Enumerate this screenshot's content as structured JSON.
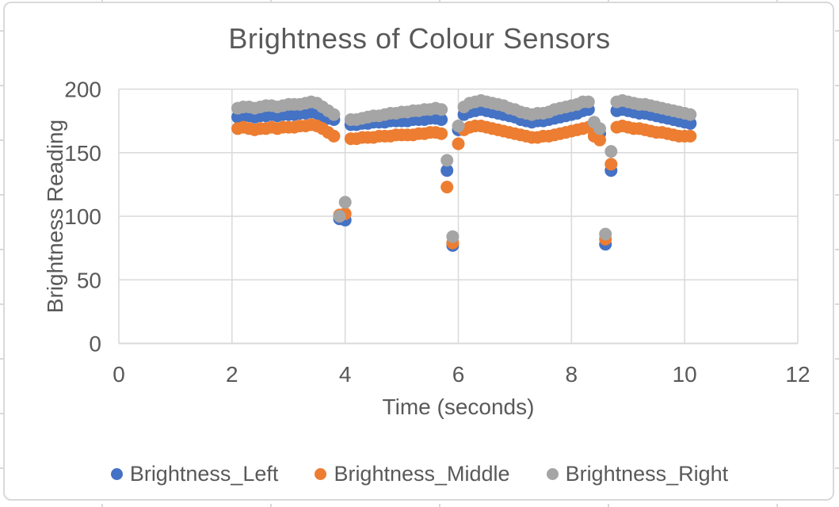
{
  "chart_data": {
    "type": "scatter",
    "title": "Brightness of Colour Sensors",
    "xlabel": "Time (seconds)",
    "ylabel": "Brightness Reading",
    "xlim": [
      0,
      12
    ],
    "ylim": [
      0,
      200
    ],
    "xticks": [
      0,
      2,
      4,
      6,
      8,
      10,
      12
    ],
    "yticks": [
      0,
      50,
      100,
      150,
      200
    ],
    "grid": true,
    "legend_position": "bottom",
    "marker": "circle",
    "colors": {
      "gridline": "#D9D9D9",
      "axis_text": "#595959",
      "series_blue": "#4472C4",
      "series_orange": "#ED7D31",
      "series_gray": "#A5A5A5"
    },
    "x": [
      2.1,
      2.2,
      2.3,
      2.4,
      2.5,
      2.6,
      2.7,
      2.8,
      2.9,
      3.0,
      3.1,
      3.2,
      3.3,
      3.4,
      3.5,
      3.6,
      3.7,
      3.8,
      3.9,
      4.0,
      4.1,
      4.2,
      4.3,
      4.4,
      4.5,
      4.6,
      4.7,
      4.8,
      4.9,
      5.0,
      5.1,
      5.2,
      5.3,
      5.4,
      5.5,
      5.6,
      5.7,
      5.8,
      5.9,
      6.0,
      6.1,
      6.2,
      6.3,
      6.4,
      6.5,
      6.6,
      6.7,
      6.8,
      6.9,
      7.0,
      7.1,
      7.2,
      7.3,
      7.4,
      7.5,
      7.6,
      7.7,
      7.8,
      7.9,
      8.0,
      8.1,
      8.2,
      8.3,
      8.4,
      8.5,
      8.6,
      8.7,
      8.8,
      8.9,
      9.0,
      9.1,
      9.2,
      9.3,
      9.4,
      9.5,
      9.6,
      9.7,
      9.8,
      9.9,
      10.0,
      10.1
    ],
    "series": [
      {
        "name": "Brightness_Left",
        "color": "#4472C4",
        "values": [
          178,
          179,
          179,
          178,
          179,
          179,
          180,
          179,
          180,
          180,
          180,
          181,
          181,
          182,
          181,
          179,
          177,
          176,
          98,
          97,
          172,
          172,
          173,
          173,
          174,
          174,
          174,
          175,
          175,
          175,
          175,
          176,
          176,
          176,
          177,
          177,
          176,
          136,
          77,
          168,
          180,
          182,
          183,
          184,
          183,
          182,
          181,
          180,
          179,
          178,
          176,
          175,
          174,
          175,
          175,
          176,
          177,
          178,
          179,
          180,
          181,
          183,
          184,
          172,
          165,
          78,
          136,
          183,
          184,
          183,
          182,
          181,
          181,
          180,
          179,
          178,
          177,
          176,
          175,
          174,
          173
        ]
      },
      {
        "name": "Brightness_Middle",
        "color": "#ED7D31",
        "values": [
          169,
          170,
          169,
          168,
          169,
          169,
          170,
          169,
          170,
          170,
          170,
          171,
          171,
          172,
          171,
          169,
          166,
          163,
          101,
          102,
          161,
          161,
          162,
          162,
          162,
          163,
          163,
          163,
          164,
          164,
          164,
          164,
          165,
          165,
          166,
          166,
          165,
          123,
          79,
          157,
          168,
          170,
          171,
          171,
          170,
          169,
          168,
          167,
          166,
          165,
          164,
          163,
          162,
          162,
          163,
          163,
          164,
          165,
          166,
          167,
          168,
          169,
          170,
          163,
          160,
          82,
          141,
          170,
          171,
          170,
          169,
          169,
          168,
          167,
          166,
          166,
          165,
          164,
          163,
          163,
          163
        ]
      },
      {
        "name": "Brightness_Right",
        "color": "#A5A5A5",
        "values": [
          185,
          186,
          186,
          185,
          186,
          187,
          187,
          186,
          187,
          188,
          188,
          188,
          189,
          190,
          189,
          186,
          183,
          180,
          100,
          111,
          176,
          176,
          177,
          178,
          179,
          179,
          180,
          181,
          181,
          182,
          182,
          183,
          183,
          184,
          184,
          185,
          184,
          144,
          84,
          171,
          186,
          189,
          190,
          191,
          190,
          189,
          188,
          187,
          185,
          184,
          182,
          181,
          180,
          181,
          181,
          182,
          184,
          185,
          186,
          187,
          188,
          190,
          190,
          174,
          169,
          86,
          151,
          190,
          191,
          190,
          189,
          188,
          188,
          187,
          186,
          185,
          184,
          183,
          182,
          181,
          180
        ]
      }
    ]
  }
}
